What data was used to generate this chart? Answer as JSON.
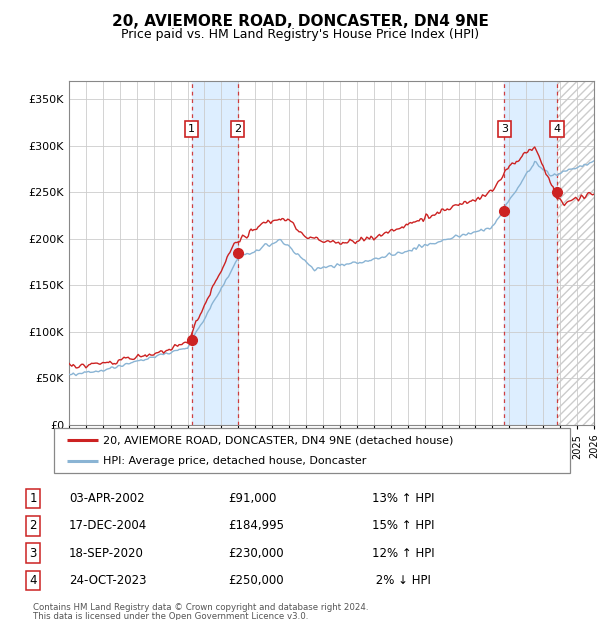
{
  "title": "20, AVIEMORE ROAD, DONCASTER, DN4 9NE",
  "subtitle": "Price paid vs. HM Land Registry's House Price Index (HPI)",
  "ylim": [
    0,
    370000
  ],
  "yticks": [
    0,
    50000,
    100000,
    150000,
    200000,
    250000,
    300000,
    350000
  ],
  "ytick_labels": [
    "£0",
    "£50K",
    "£100K",
    "£150K",
    "£200K",
    "£250K",
    "£300K",
    "£350K"
  ],
  "hpi_line_color": "#8ab4d4",
  "price_line_color": "#cc2222",
  "marker_color": "#cc2222",
  "bg_color": "#ffffff",
  "grid_color": "#cccccc",
  "shade_color": "#ddeeff",
  "hatch_color": "#cccccc",
  "transactions": [
    {
      "label": "1",
      "date": "03-APR-2002",
      "price": 91000,
      "pct": "13%",
      "dir": "↑",
      "year_x": 2002.25
    },
    {
      "label": "2",
      "date": "17-DEC-2004",
      "price": 184995,
      "pct": "15%",
      "dir": "↑",
      "year_x": 2004.96
    },
    {
      "label": "3",
      "date": "18-SEP-2020",
      "price": 230000,
      "pct": "12%",
      "dir": "↑",
      "year_x": 2020.71
    },
    {
      "label": "4",
      "date": "24-OCT-2023",
      "price": 250000,
      "pct": "2%",
      "dir": "↓",
      "year_x": 2023.81
    }
  ],
  "legend_line1": "20, AVIEMORE ROAD, DONCASTER, DN4 9NE (detached house)",
  "legend_line2": "HPI: Average price, detached house, Doncaster",
  "footer1": "Contains HM Land Registry data © Crown copyright and database right 2024.",
  "footer2": "This data is licensed under the Open Government Licence v3.0.",
  "table_rows": [
    [
      "1",
      "03-APR-2002",
      "£91,000",
      "13% ↑ HPI"
    ],
    [
      "2",
      "17-DEC-2004",
      "£184,995",
      "15% ↑ HPI"
    ],
    [
      "3",
      "18-SEP-2020",
      "£230,000",
      "12% ↑ HPI"
    ],
    [
      "4",
      "24-OCT-2023",
      "£250,000",
      " 2% ↓ HPI"
    ]
  ],
  "xmin": 1995,
  "xmax": 2026
}
